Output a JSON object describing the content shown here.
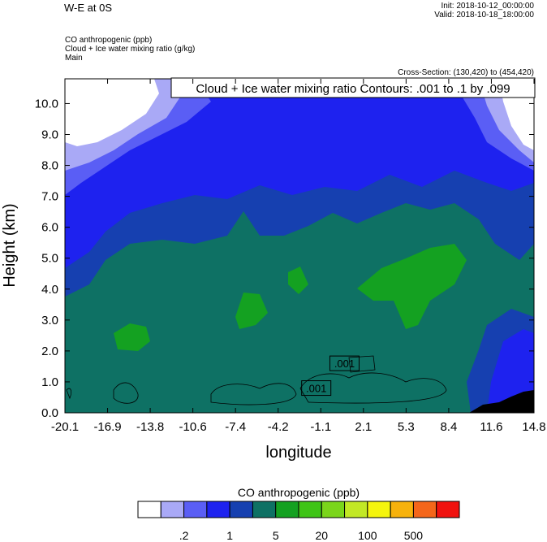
{
  "header": {
    "title": "W-E at 0S",
    "init": "Init: 2018-10-12_00:00:00",
    "valid": "Valid: 2018-10-18_18:00:00",
    "fields": [
      "CO anthropogenic   (ppb)",
      "Cloud + Ice water mixing ratio   (g/kg)",
      "Main"
    ],
    "cross_section": "Cross-Section: (130,420) to (454,420)"
  },
  "contour_label": "Cloud + Ice water mixing ratio Contours: .001 to .1 by .099",
  "chart_data": {
    "type": "heatmap",
    "xlabel": "longitude",
    "ylabel": "Height (km)",
    "x_ticks": [
      "-20.1",
      "-16.9",
      "-13.8",
      "-10.6",
      "-7.4",
      "-4.2",
      "-1.1",
      "2.1",
      "5.3",
      "8.4",
      "11.6",
      "14.8"
    ],
    "y_ticks": [
      "0.0",
      "1.0",
      "2.0",
      "3.0",
      "4.0",
      "5.0",
      "6.0",
      "7.0",
      "8.0",
      "9.0",
      "10.0"
    ],
    "xlim": [
      -20.1,
      14.8
    ],
    "ylim": [
      0,
      10.8
    ],
    "contour_labels": [
      {
        "text": ".001",
        "x": 0.7,
        "y": 1.6
      },
      {
        "text": ".001",
        "x": -1.4,
        "y": 0.8
      }
    ],
    "colorbar": {
      "title": "CO anthropogenic  (ppb)",
      "colors": [
        "#ffffff",
        "#a9a9f6",
        "#5a5ef5",
        "#1e22ef",
        "#1640b0",
        "#0e7164",
        "#14a121",
        "#3fc416",
        "#7ad51a",
        "#c2e825",
        "#f5f50d",
        "#f7b20c",
        "#f4661a",
        "#f0120f"
      ],
      "labels": [
        ".2",
        "1",
        "5",
        "20",
        "100",
        "500"
      ]
    }
  },
  "colors": {
    "white": "#ffffff",
    "lav": "#a9a9f6",
    "lblue": "#5a5ef5",
    "blue": "#1e22ef",
    "dblue": "#1640b0",
    "teal": "#0e7164",
    "green": "#14a121",
    "terrain": "#000000"
  }
}
